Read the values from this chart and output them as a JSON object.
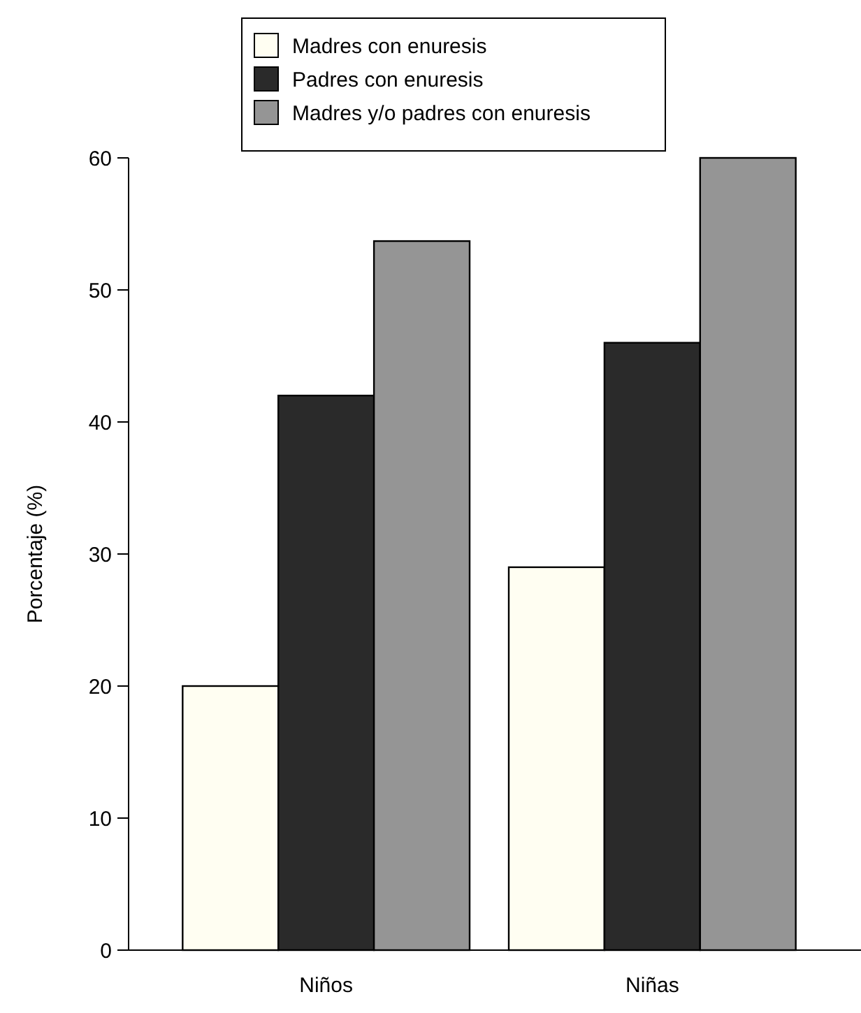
{
  "chart_data": {
    "type": "bar",
    "ylabel": "Porcentaje (%)",
    "categories": [
      "Niños",
      "Niñas"
    ],
    "series": [
      {
        "name": "Madres con enuresis",
        "color": "#fffef2",
        "values": [
          20,
          29
        ]
      },
      {
        "name": "Padres con enuresis",
        "color": "#2a2a2a",
        "values": [
          42,
          46
        ]
      },
      {
        "name": "Madres y/o padres con enuresis",
        "color": "#959595",
        "values": [
          53.7,
          60
        ]
      }
    ],
    "ylim": [
      0,
      60
    ],
    "yticks": [
      0,
      10,
      20,
      30,
      40,
      50,
      60
    ],
    "grid": false,
    "legend": "top"
  }
}
